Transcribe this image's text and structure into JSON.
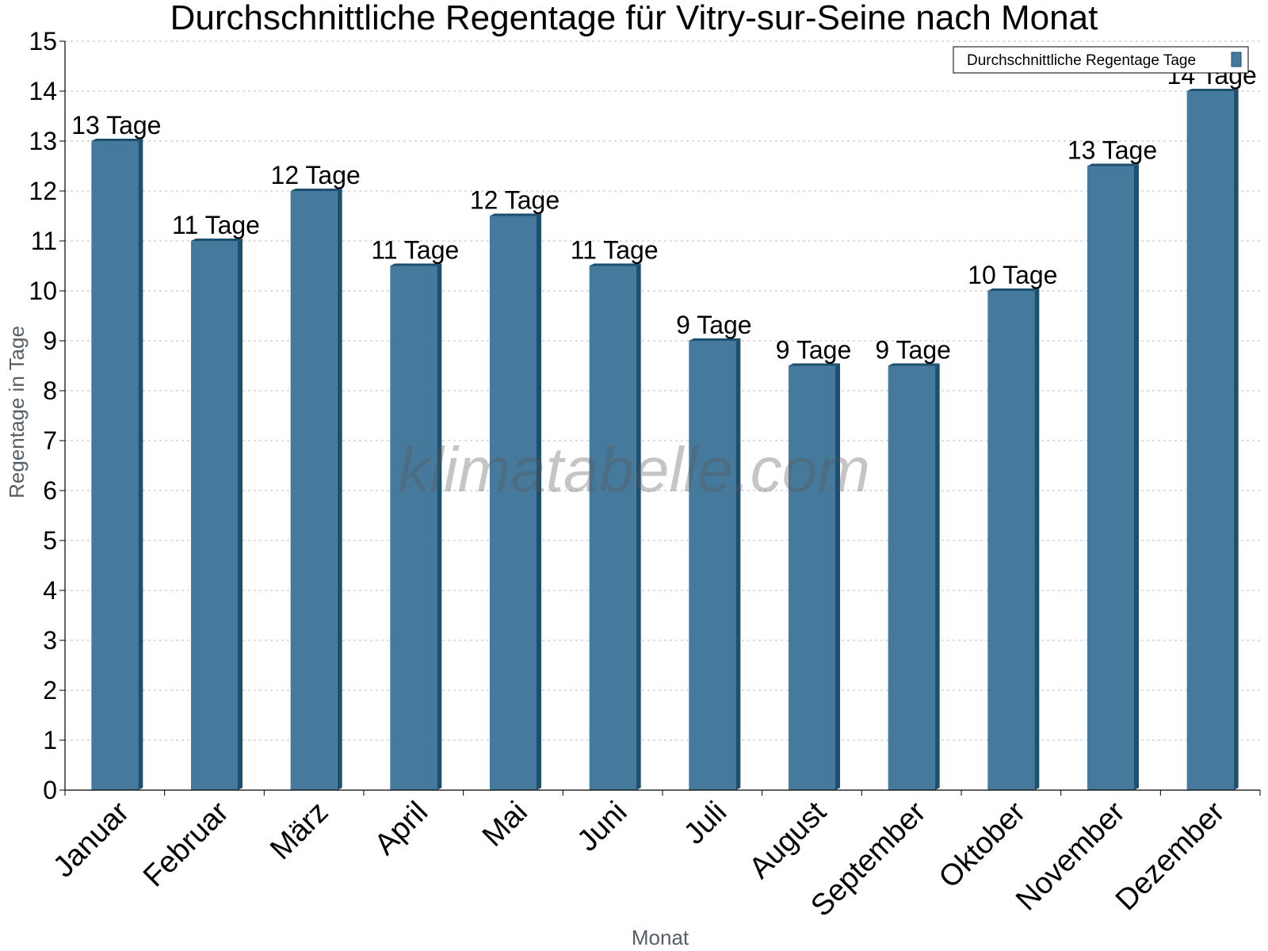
{
  "chart_data": {
    "type": "bar",
    "title": "Durchschnittliche Regentage für Vitry-sur-Seine nach Monat",
    "xlabel": "Monat",
    "ylabel": "Regentage in Tage",
    "ylim": [
      0,
      15
    ],
    "yticks": [
      0,
      1,
      2,
      3,
      4,
      5,
      6,
      7,
      8,
      9,
      10,
      11,
      12,
      13,
      14,
      15
    ],
    "grid": true,
    "legend_position": "top-right",
    "categories": [
      "Januar",
      "Februar",
      "März",
      "April",
      "Mai",
      "Juni",
      "Juli",
      "August",
      "September",
      "Oktober",
      "November",
      "Dezember"
    ],
    "series": [
      {
        "name": "Durchschnittliche Regentage Tage",
        "color": "#467a9c",
        "color_dark": "#1d4f6e",
        "values": [
          13,
          11,
          12,
          10.5,
          11.5,
          10.5,
          9,
          8.5,
          8.5,
          10,
          12.5,
          14
        ],
        "data_labels": [
          "13 Tage",
          "11 Tage",
          "12 Tage",
          "11 Tage",
          "12 Tage",
          "11 Tage",
          "9 Tage",
          "9 Tage",
          "9 Tage",
          "10 Tage",
          "13 Tage",
          "14 Tage"
        ]
      }
    ]
  },
  "watermark": "klimatabelle.com"
}
